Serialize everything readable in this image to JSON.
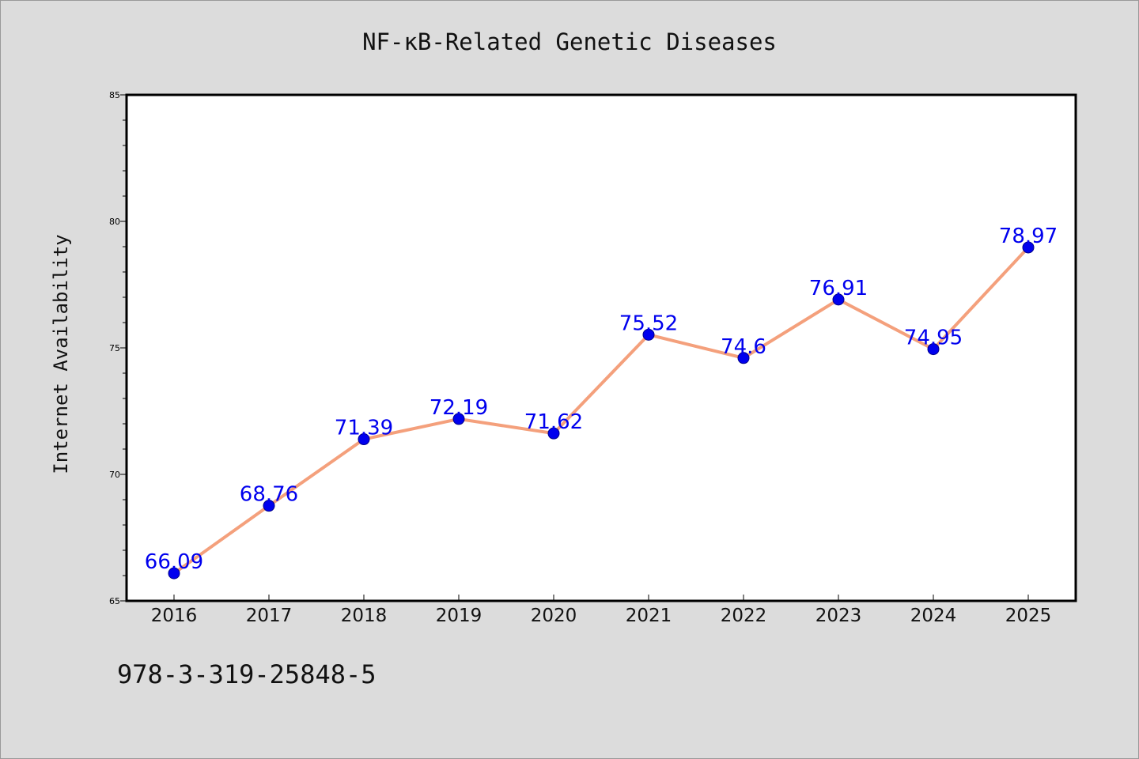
{
  "chart_data": {
    "type": "line",
    "title": "NF-κB-Related Genetic Diseases",
    "xlabel": "",
    "ylabel": "Internet Availability",
    "categories": [
      "2016",
      "2017",
      "2018",
      "2019",
      "2020",
      "2021",
      "2022",
      "2023",
      "2024",
      "2025"
    ],
    "series": [
      {
        "values": [
          66.09,
          68.76,
          71.39,
          72.19,
          71.62,
          75.52,
          74.6,
          76.91,
          74.95,
          78.97
        ],
        "labels": [
          "66.09",
          "68.76",
          "71.39",
          "72.19",
          "71.62",
          "75.52",
          "74.6",
          "76.91",
          "74.95",
          "78.97"
        ],
        "line_color": "#f4a07c",
        "marker_color": "#0000ee"
      }
    ],
    "ylim": [
      65,
      85
    ],
    "yticks": [
      "65",
      "70",
      "75",
      "80",
      "85"
    ],
    "grid": false,
    "background": "#dcdcdc",
    "plot_background": "#ffffff",
    "label_color": "#0000ee"
  },
  "footer": {
    "text": "978-3-319-25848-5"
  }
}
